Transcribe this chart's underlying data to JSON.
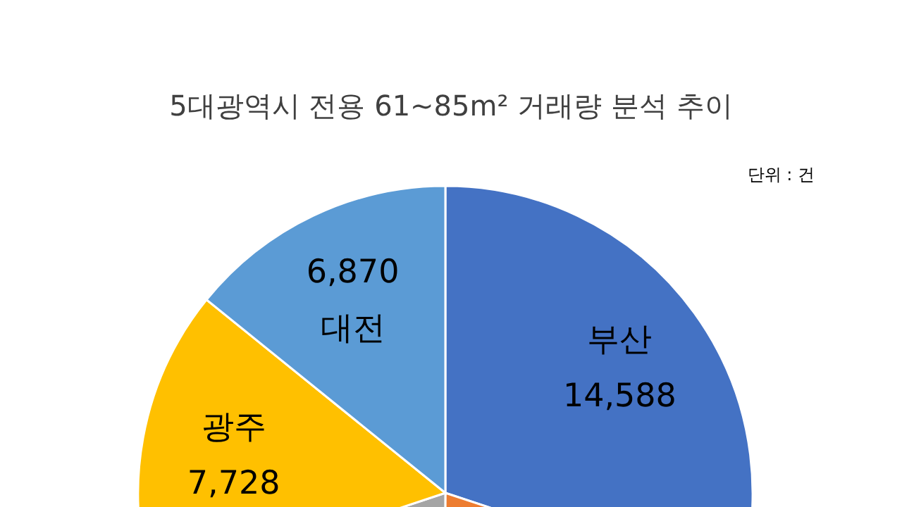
{
  "chart_data": {
    "type": "pie",
    "title": "5대광역시 전용 61~85m² 거래량 분석 추이",
    "annotations": [
      "단위 : 건"
    ],
    "categories": [
      "부산",
      null,
      null,
      "광주",
      "대전"
    ],
    "values": [
      14588,
      9700,
      9600,
      7728,
      6870
    ],
    "colors": [
      "#4472c4",
      "#ed7d31",
      "#a5a5a5",
      "#ffc000",
      "#5b9bd5"
    ],
    "value_labels": [
      "14,588",
      null,
      null,
      "7,728",
      "6,870"
    ]
  }
}
